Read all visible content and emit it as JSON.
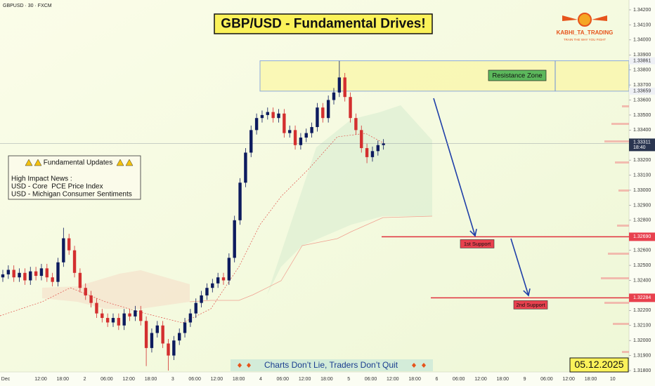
{
  "chart_data": {
    "type": "candlestick",
    "symbol": "GBPUSD · 30 · FXCM",
    "title": "GBP/USD - Fundamental Drives!",
    "brand": "KABHI_TA_TRADING",
    "brand_tagline": "TRAIN THE WAY YOU FIGHT",
    "notes": {
      "title": "Fundamental Updates",
      "lines": [
        "High Impact News :",
        "USD - Core  PCE Price Index",
        "USD - Michigan Consumer Sentiments"
      ]
    },
    "banner": "Charts Don’t Lie, Traders Don’t Quit",
    "date": "05.12.2025",
    "up_color": "#0d1b5e",
    "down_color": "#d32f2f",
    "grid": false,
    "ylim": [
      1.318,
      1.342
    ],
    "yticks": [
      {
        "value": 1.342,
        "label": "1.34200"
      },
      {
        "value": 1.341,
        "label": "1.34100"
      },
      {
        "value": 1.34,
        "label": "1.34000"
      },
      {
        "value": 1.339,
        "label": "1.33900"
      },
      {
        "value": 1.338,
        "label": "1.33800"
      },
      {
        "value": 1.337,
        "label": "1.33700"
      },
      {
        "value": 1.336,
        "label": "1.33600"
      },
      {
        "value": 1.335,
        "label": "1.33500"
      },
      {
        "value": 1.334,
        "label": "1.33400"
      },
      {
        "value": 1.332,
        "label": "1.33200"
      },
      {
        "value": 1.331,
        "label": "1.33100"
      },
      {
        "value": 1.33,
        "label": "1.33000"
      },
      {
        "value": 1.329,
        "label": "1.32900"
      },
      {
        "value": 1.328,
        "label": "1.32800"
      },
      {
        "value": 1.326,
        "label": "1.32600"
      },
      {
        "value": 1.325,
        "label": "1.32500"
      },
      {
        "value": 1.324,
        "label": "1.32400"
      },
      {
        "value": 1.322,
        "label": "1.32200"
      },
      {
        "value": 1.321,
        "label": "1.32100"
      },
      {
        "value": 1.32,
        "label": "1.32000"
      },
      {
        "value": 1.319,
        "label": "1.31900"
      },
      {
        "value": 1.318,
        "label": "1.31800"
      }
    ],
    "xlabels": [
      "Dec",
      "12:00",
      "18:00",
      "2",
      "06:00",
      "12:00",
      "18:00",
      "3",
      "06:00",
      "12:00",
      "18:00",
      "4",
      "06:00",
      "12:00",
      "18:00",
      "5",
      "06:00",
      "12:00",
      "18:00",
      "6",
      "06:00",
      "12:00",
      "18:00",
      "9",
      "06:00",
      "12:00",
      "18:00",
      "10"
    ],
    "resistance_zone": {
      "label": "Resistance Zone",
      "top": 1.33861,
      "top_label": "1.33861",
      "bottom": 1.33659,
      "bottom_label": "1.33659"
    },
    "supports": [
      {
        "label": "1st Support",
        "value": 1.3269,
        "axis_label": "1.32690"
      },
      {
        "label": "2nd Support",
        "value": 1.32284,
        "axis_label": "1.32284"
      }
    ],
    "current_price": {
      "value": 1.33311,
      "label": "1.33311",
      "time": "18:40"
    },
    "open": [
      1.3242,
      1.3244,
      1.3247,
      1.3242,
      1.3245,
      1.324,
      1.3246,
      1.3243,
      1.3248,
      1.3242,
      1.3239,
      1.3252,
      1.3268,
      1.326,
      1.3245,
      1.3235,
      1.323,
      1.3225,
      1.3218,
      1.3215,
      1.3212,
      1.3215,
      1.321,
      1.3218,
      1.3216,
      1.322,
      1.3213,
      1.3195,
      1.3205,
      1.321,
      1.3198,
      1.319,
      1.32,
      1.3205,
      1.3212,
      1.3218,
      1.3225,
      1.323,
      1.3235,
      1.3238,
      1.3242,
      1.324,
      1.3255,
      1.328,
      1.3305,
      1.3325,
      1.334,
      1.3348,
      1.335,
      1.3352,
      1.3348,
      1.3351,
      1.3338,
      1.334,
      1.333,
      1.3335,
      1.3338,
      1.3342,
      1.3355,
      1.3348,
      1.336,
      1.3365,
      1.3375,
      1.3362,
      1.3348,
      1.334,
      1.3328,
      1.3322,
      1.3326,
      1.333
    ],
    "high": [
      1.3247,
      1.325,
      1.325,
      1.3248,
      1.3248,
      1.3249,
      1.3249,
      1.3251,
      1.3251,
      1.3245,
      1.3255,
      1.3275,
      1.3271,
      1.3263,
      1.3248,
      1.3238,
      1.3233,
      1.3228,
      1.3221,
      1.3218,
      1.3218,
      1.3218,
      1.3221,
      1.3221,
      1.3223,
      1.3223,
      1.3216,
      1.3208,
      1.3213,
      1.3213,
      1.3201,
      1.3203,
      1.3208,
      1.3215,
      1.3221,
      1.3228,
      1.3233,
      1.3238,
      1.3241,
      1.3245,
      1.3245,
      1.3258,
      1.3283,
      1.3308,
      1.3328,
      1.3343,
      1.3351,
      1.3353,
      1.3355,
      1.3355,
      1.3354,
      1.3354,
      1.3343,
      1.3343,
      1.3338,
      1.3341,
      1.3345,
      1.3358,
      1.3358,
      1.3363,
      1.3368,
      1.3386,
      1.3378,
      1.3365,
      1.3351,
      1.3343,
      1.3331,
      1.3329,
      1.3333,
      1.3334
    ],
    "low": [
      1.3239,
      1.3241,
      1.3239,
      1.3239,
      1.3237,
      1.3237,
      1.324,
      1.324,
      1.3239,
      1.3236,
      1.3236,
      1.3249,
      1.3257,
      1.3242,
      1.3232,
      1.3227,
      1.3222,
      1.3215,
      1.3212,
      1.3209,
      1.3209,
      1.3207,
      1.3207,
      1.3213,
      1.3213,
      1.321,
      1.3183,
      1.3192,
      1.3202,
      1.3195,
      1.318,
      1.3187,
      1.3197,
      1.3202,
      1.3209,
      1.3215,
      1.3222,
      1.3227,
      1.3232,
      1.3235,
      1.3237,
      1.3237,
      1.3252,
      1.3277,
      1.3302,
      1.3322,
      1.3337,
      1.3345,
      1.3347,
      1.3345,
      1.3345,
      1.3335,
      1.3335,
      1.3327,
      1.3327,
      1.3332,
      1.3335,
      1.3339,
      1.3345,
      1.3345,
      1.3357,
      1.3362,
      1.3359,
      1.3345,
      1.3337,
      1.3325,
      1.3318,
      1.3319,
      1.3323,
      1.3327
    ],
    "close": [
      1.3244,
      1.3247,
      1.3242,
      1.3245,
      1.324,
      1.3246,
      1.3243,
      1.3248,
      1.3242,
      1.3239,
      1.3252,
      1.3268,
      1.326,
      1.3245,
      1.3235,
      1.323,
      1.3225,
      1.3218,
      1.3215,
      1.3212,
      1.3215,
      1.321,
      1.3218,
      1.3216,
      1.322,
      1.3213,
      1.3195,
      1.3205,
      1.321,
      1.3198,
      1.319,
      1.32,
      1.3205,
      1.3212,
      1.3218,
      1.3225,
      1.323,
      1.3235,
      1.3238,
      1.3242,
      1.324,
      1.3255,
      1.328,
      1.3305,
      1.3325,
      1.334,
      1.3348,
      1.335,
      1.3352,
      1.3348,
      1.3351,
      1.3338,
      1.334,
      1.333,
      1.3335,
      1.3338,
      1.3342,
      1.3355,
      1.3348,
      1.336,
      1.3365,
      1.3375,
      1.3362,
      1.3348,
      1.334,
      1.3328,
      1.3322,
      1.3326,
      1.333,
      1.33311
    ]
  }
}
